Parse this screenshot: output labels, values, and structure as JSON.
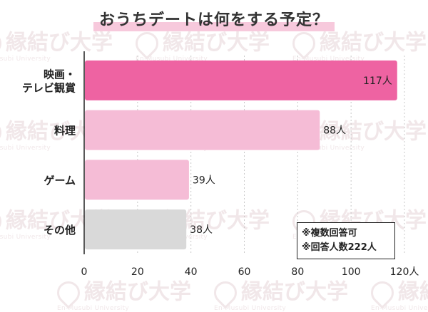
{
  "watermark": {
    "text": "縁結び大学",
    "subtext": "En-Musubi University"
  },
  "notes": [
    "※複数回答可",
    "※回答人数222人"
  ],
  "colors": {
    "highlight": "#ee63a2",
    "normal": "#f5bcd6",
    "other": "#d9d9d9",
    "title_underline": "#f7c9dc"
  },
  "chart_data": {
    "type": "bar",
    "orientation": "horizontal",
    "title": "おうちデートは何をする予定？",
    "categories": [
      "映画・テレビ観賞",
      "料理",
      "ゲーム",
      "その他"
    ],
    "category_lines": [
      [
        "映画・",
        "テレビ観賞"
      ],
      [
        "料理"
      ],
      [
        "ゲーム"
      ],
      [
        "その他"
      ]
    ],
    "values": [
      117,
      88,
      39,
      38
    ],
    "value_labels": [
      "117人",
      "88人",
      "39人",
      "38人"
    ],
    "bar_colors": [
      "#ee63a2",
      "#f5bcd6",
      "#f5bcd6",
      "#d9d9d9"
    ],
    "xlim": [
      0,
      120
    ],
    "x_ticks": [
      "0",
      "20",
      "40",
      "60",
      "80",
      "100",
      "120人"
    ],
    "grid": true
  }
}
